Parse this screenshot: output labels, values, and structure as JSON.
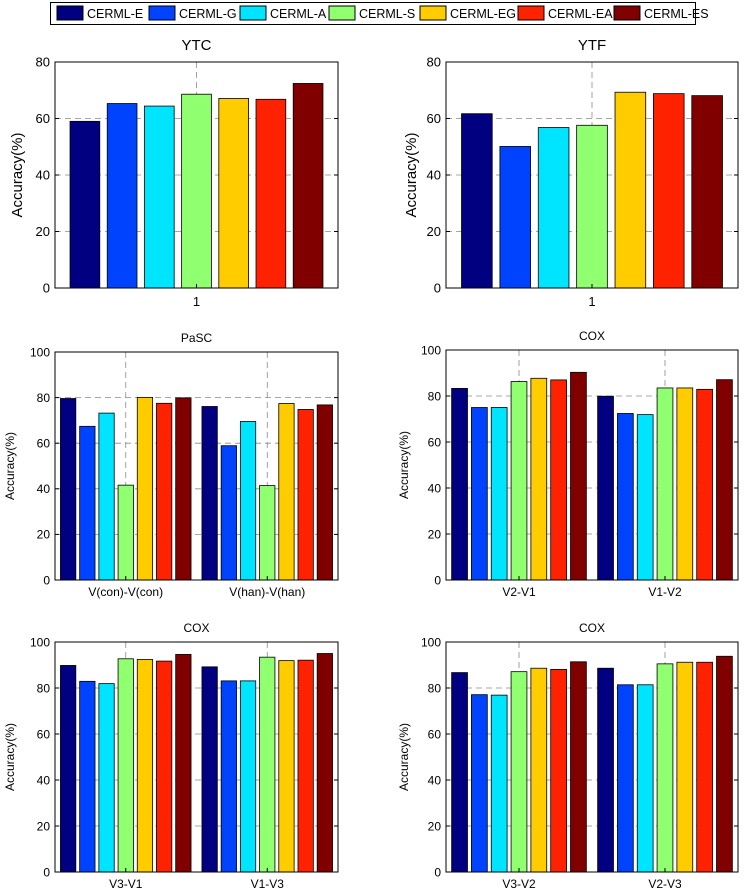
{
  "legend": {
    "entries": [
      {
        "label": "CERML-E",
        "color": "#000080"
      },
      {
        "label": "CERML-G",
        "color": "#0043ff"
      },
      {
        "label": "CERML-A",
        "color": "#00e5ff"
      },
      {
        "label": "CERML-S",
        "color": "#90ff70"
      },
      {
        "label": "CERML-EG",
        "color": "#ffcc00"
      },
      {
        "label": "CERML-EA",
        "color": "#ff2200"
      },
      {
        "label": "CERML-ES",
        "color": "#800000"
      }
    ]
  },
  "chart_data": [
    {
      "type": "bar",
      "title": "YTC",
      "xlabel": "",
      "ylabel": "Accuracy(%)",
      "ylim": [
        0,
        80
      ],
      "yticks": [
        "0",
        "20",
        "40",
        "60",
        "80"
      ],
      "categories": [
        "1"
      ],
      "grid": true,
      "series": [
        {
          "name": "CERML-E",
          "values": [
            59.0
          ]
        },
        {
          "name": "CERML-G",
          "values": [
            65.3
          ]
        },
        {
          "name": "CERML-A",
          "values": [
            64.4
          ]
        },
        {
          "name": "CERML-S",
          "values": [
            68.6
          ]
        },
        {
          "name": "CERML-EG",
          "values": [
            67.1
          ]
        },
        {
          "name": "CERML-EA",
          "values": [
            66.8
          ]
        },
        {
          "name": "CERML-ES",
          "values": [
            72.4
          ]
        }
      ]
    },
    {
      "type": "bar",
      "title": "YTF",
      "xlabel": "",
      "ylabel": "Accuracy(%)",
      "ylim": [
        0,
        80
      ],
      "yticks": [
        "0",
        "20",
        "40",
        "60",
        "80"
      ],
      "categories": [
        "1"
      ],
      "grid": true,
      "series": [
        {
          "name": "CERML-E",
          "values": [
            61.7
          ]
        },
        {
          "name": "CERML-G",
          "values": [
            50.1
          ]
        },
        {
          "name": "CERML-A",
          "values": [
            56.8
          ]
        },
        {
          "name": "CERML-S",
          "values": [
            57.6
          ]
        },
        {
          "name": "CERML-EG",
          "values": [
            69.3
          ]
        },
        {
          "name": "CERML-EA",
          "values": [
            68.8
          ]
        },
        {
          "name": "CERML-ES",
          "values": [
            68.1
          ]
        }
      ]
    },
    {
      "type": "bar",
      "title": "PaSC",
      "xlabel": "",
      "ylabel": "Accuracy(%)",
      "ylim": [
        0,
        100
      ],
      "yticks": [
        "0",
        "20",
        "40",
        "60",
        "80",
        "100"
      ],
      "categories": [
        "V(con)-V(con)",
        "V(han)-V(han)"
      ],
      "grid": true,
      "series": [
        {
          "name": "CERML-E",
          "values": [
            79.6,
            76.1
          ]
        },
        {
          "name": "CERML-G",
          "values": [
            67.4,
            58.9
          ]
        },
        {
          "name": "CERML-A",
          "values": [
            73.2,
            69.5
          ]
        },
        {
          "name": "CERML-S",
          "values": [
            41.6,
            41.4
          ]
        },
        {
          "name": "CERML-EG",
          "values": [
            80.1,
            77.4
          ]
        },
        {
          "name": "CERML-EA",
          "values": [
            77.5,
            74.8
          ]
        },
        {
          "name": "CERML-ES",
          "values": [
            79.9,
            76.8
          ]
        }
      ]
    },
    {
      "type": "bar",
      "title": "COX",
      "xlabel": "",
      "ylabel": "Accuracy(%)",
      "ylim": [
        0,
        100
      ],
      "yticks": [
        "0",
        "20",
        "40",
        "60",
        "80",
        "100"
      ],
      "categories": [
        "V2-V1",
        "V1-V2"
      ],
      "grid": true,
      "series": [
        {
          "name": "CERML-E",
          "values": [
            83.3,
            79.9
          ]
        },
        {
          "name": "CERML-G",
          "values": [
            75.0,
            72.4
          ]
        },
        {
          "name": "CERML-A",
          "values": [
            75.0,
            71.9
          ]
        },
        {
          "name": "CERML-S",
          "values": [
            86.3,
            83.5
          ]
        },
        {
          "name": "CERML-EG",
          "values": [
            87.7,
            83.5
          ]
        },
        {
          "name": "CERML-EA",
          "values": [
            87.0,
            82.9
          ]
        },
        {
          "name": "CERML-ES",
          "values": [
            90.3,
            87.1
          ]
        }
      ]
    },
    {
      "type": "bar",
      "title": "COX",
      "xlabel": "",
      "ylabel": "Accuracy(%)",
      "ylim": [
        0,
        100
      ],
      "yticks": [
        "0",
        "20",
        "40",
        "60",
        "80",
        "100"
      ],
      "categories": [
        "V3-V1",
        "V1-V3"
      ],
      "grid": true,
      "series": [
        {
          "name": "CERML-E",
          "values": [
            89.8,
            89.2
          ]
        },
        {
          "name": "CERML-G",
          "values": [
            82.9,
            83.1
          ]
        },
        {
          "name": "CERML-A",
          "values": [
            81.9,
            83.1
          ]
        },
        {
          "name": "CERML-S",
          "values": [
            92.7,
            93.4
          ]
        },
        {
          "name": "CERML-EG",
          "values": [
            92.4,
            91.9
          ]
        },
        {
          "name": "CERML-EA",
          "values": [
            91.7,
            92.1
          ]
        },
        {
          "name": "CERML-ES",
          "values": [
            94.6,
            95.0
          ]
        }
      ]
    },
    {
      "type": "bar",
      "title": "COX",
      "xlabel": "",
      "ylabel": "Accuracy(%)",
      "ylim": [
        0,
        100
      ],
      "yticks": [
        "0",
        "20",
        "40",
        "60",
        "80",
        "100"
      ],
      "categories": [
        "V3-V2",
        "V2-V3"
      ],
      "grid": true,
      "series": [
        {
          "name": "CERML-E",
          "values": [
            86.7,
            88.6
          ]
        },
        {
          "name": "CERML-G",
          "values": [
            77.1,
            81.4
          ]
        },
        {
          "name": "CERML-A",
          "values": [
            76.9,
            81.4
          ]
        },
        {
          "name": "CERML-S",
          "values": [
            87.1,
            90.5
          ]
        },
        {
          "name": "CERML-EG",
          "values": [
            88.6,
            91.2
          ]
        },
        {
          "name": "CERML-EA",
          "values": [
            88.1,
            91.2
          ]
        },
        {
          "name": "CERML-ES",
          "values": [
            91.4,
            93.8
          ]
        }
      ]
    }
  ]
}
